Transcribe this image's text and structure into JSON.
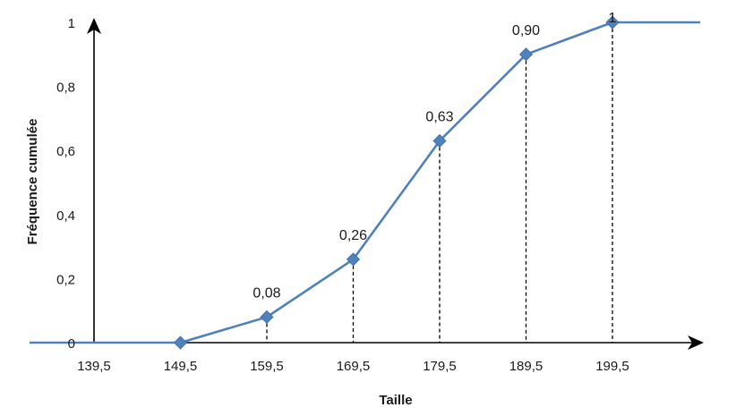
{
  "chart_data": {
    "type": "line",
    "title": "",
    "xlabel": "Taille",
    "ylabel": "Fréquence cumulée",
    "x_ticks": [
      "139,5",
      "149,5",
      "159,5",
      "169,5",
      "179,5",
      "189,5",
      "199,5"
    ],
    "y_ticks": [
      "0",
      "0,2",
      "0,4",
      "0,6",
      "0,8",
      "1"
    ],
    "xlim": [
      139.5,
      209.5
    ],
    "ylim": [
      0,
      1
    ],
    "grid": false,
    "legend": "none",
    "line_color": "#4f81bd",
    "marker_color": "#4f81bd",
    "marker": "diamond",
    "series": [
      {
        "x": [
          139.5,
          149.5,
          159.5,
          169.5,
          179.5,
          189.5,
          199.5,
          209.5
        ],
        "y": [
          0,
          0,
          0.08,
          0.26,
          0.63,
          0.9,
          1,
          1
        ],
        "markers": [
          false,
          true,
          true,
          true,
          true,
          true,
          true,
          false
        ]
      }
    ],
    "data_labels": [
      {
        "x": 159.5,
        "y": 0.08,
        "text": "0,08"
      },
      {
        "x": 169.5,
        "y": 0.26,
        "text": "0,26"
      },
      {
        "x": 179.5,
        "y": 0.63,
        "text": "0,63"
      },
      {
        "x": 189.5,
        "y": 0.9,
        "text": "0,90"
      },
      {
        "x": 199.5,
        "y": 1,
        "text": "1"
      }
    ],
    "dashed_drop_lines_at": [
      159.5,
      169.5,
      179.5,
      189.5,
      199.5
    ]
  }
}
